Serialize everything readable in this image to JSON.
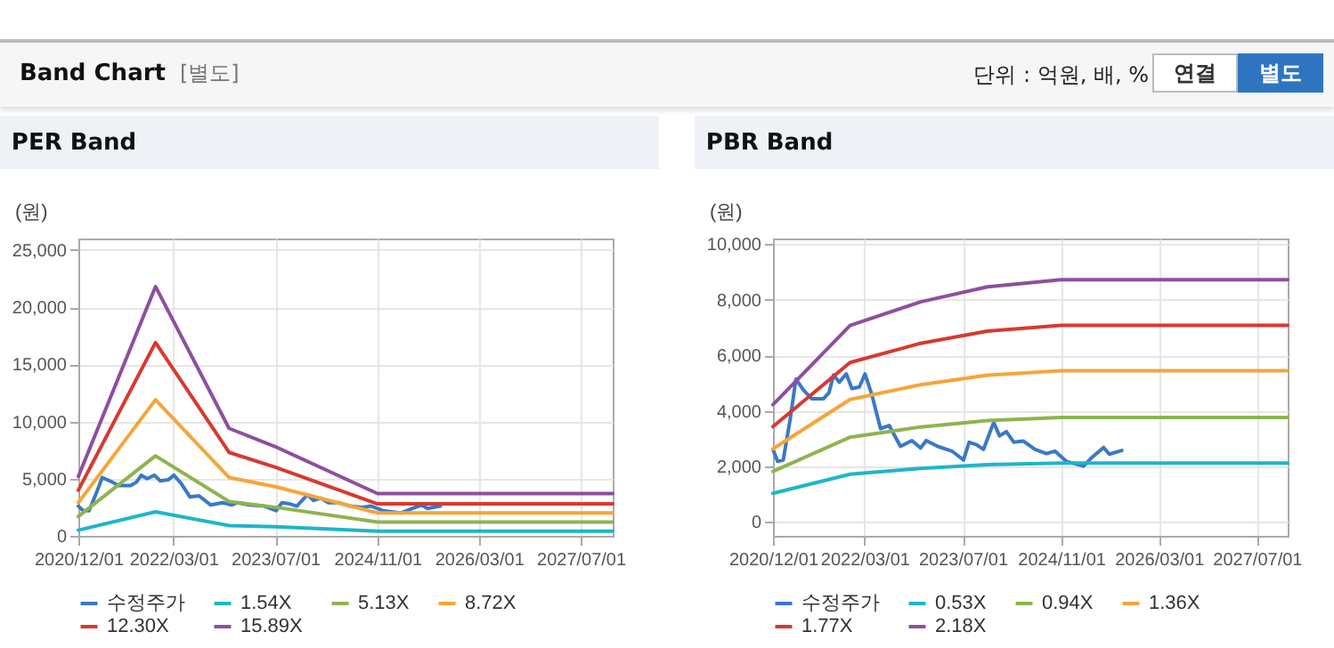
{
  "chart_data": [
    {
      "type": "other",
      "title": "Band Chart",
      "subtitle": "[별도]",
      "annotations": [
        "단위 : 억원, 배, %",
        "연결",
        "별도"
      ]
    },
    {
      "type": "line",
      "title": "PER Band",
      "ylabel": "(원)",
      "legend": "bottom",
      "grid": true,
      "xlim": [
        "2020-12-01",
        "2027-12-01"
      ],
      "xticks": [
        {
          "value": "2020-12-01",
          "label": "2020/12/01"
        },
        {
          "value": "2022-03-01",
          "label": "2022/03/01"
        },
        {
          "value": "2023-07-01",
          "label": "2023/07/01"
        },
        {
          "value": "2024-11-01",
          "label": "2024/11/01"
        },
        {
          "value": "2026-03-01",
          "label": "2026/03/01"
        },
        {
          "value": "2027-07-01",
          "label": "2027/07/01"
        }
      ],
      "ylim": [
        0,
        26000
      ],
      "yticks": [
        0,
        {
          "value": 5000,
          "label": "5,000"
        },
        {
          "value": 10000,
          "label": "10,000"
        },
        {
          "value": 15000,
          "label": "15,000"
        },
        {
          "value": 20000,
          "label": "20,000"
        },
        {
          "value": 25000,
          "label": "25,000"
        }
      ],
      "series": [
        {
          "name": "수정주가",
          "color": "#3a78c8",
          "x": [
            "2020-12-01",
            "2020-12-24",
            "2021-01-21",
            "2021-02-24",
            "2021-03-25",
            "2021-05-01",
            "2021-06-12",
            "2021-08-08",
            "2021-09-05",
            "2021-09-28",
            "2021-10-26",
            "2021-11-30",
            "2021-12-28",
            "2022-02-03",
            "2022-03-03",
            "2022-04-06",
            "2022-05-19",
            "2022-07-01",
            "2022-08-26",
            "2022-10-22",
            "2022-12-04",
            "2023-01-01",
            "2023-02-27",
            "2023-05-09",
            "2023-07-05",
            "2023-08-02",
            "2023-09-08",
            "2023-10-12",
            "2023-12-02",
            "2023-12-31",
            "2024-02-03",
            "2024-03-11",
            "2024-04-28",
            "2024-06-24",
            "2024-08-20",
            "2024-10-01",
            "2024-11-27",
            "2025-02-20",
            "2025-04-04",
            "2025-05-31",
            "2025-06-28",
            "2025-08-29"
          ],
          "values": [
            2600,
            2200,
            2200,
            3700,
            5100,
            4800,
            4400,
            4400,
            4700,
            5300,
            5000,
            5300,
            4800,
            4900,
            5300,
            4600,
            3400,
            3500,
            2700,
            2900,
            2700,
            2900,
            2700,
            2600,
            2200,
            2900,
            2800,
            2600,
            3600,
            3100,
            3300,
            2900,
            2900,
            2600,
            2500,
            2600,
            2200,
            2000,
            2300,
            2700,
            2400,
            2600
          ]
        },
        {
          "name": "1.54X",
          "color": "#1fb5c9",
          "x": [
            "2020-12-01",
            "2021-12-05",
            "2022-11-22",
            "2023-07-01",
            "2024-11-01",
            "2027-12-01"
          ],
          "values": [
            500,
            2100,
            900,
            800,
            400,
            400
          ]
        },
        {
          "name": "5.13X",
          "color": "#8db44f",
          "x": [
            "2020-12-01",
            "2021-12-05",
            "2022-11-22",
            "2023-07-01",
            "2024-11-01",
            "2027-12-01"
          ],
          "values": [
            1700,
            7000,
            3000,
            2500,
            1200,
            1200
          ]
        },
        {
          "name": "8.72X",
          "color": "#f5a53a",
          "x": [
            "2020-12-01",
            "2021-12-05",
            "2022-11-22",
            "2023-07-01",
            "2024-11-01",
            "2027-12-01"
          ],
          "values": [
            2900,
            11900,
            5100,
            4300,
            2000,
            2000
          ]
        },
        {
          "name": "12.30X",
          "color": "#d63a2f",
          "x": [
            "2020-12-01",
            "2021-12-05",
            "2022-11-22",
            "2023-07-01",
            "2024-11-01",
            "2027-12-01"
          ],
          "values": [
            4000,
            16900,
            7300,
            6000,
            2800,
            2800
          ]
        },
        {
          "name": "15.89X",
          "color": "#8e4f9e",
          "x": [
            "2020-12-01",
            "2021-12-05",
            "2022-11-22",
            "2023-07-01",
            "2024-11-01",
            "2027-12-01"
          ],
          "values": [
            5200,
            21800,
            9400,
            7800,
            3700,
            3700
          ]
        }
      ]
    },
    {
      "type": "line",
      "title": "PBR Band",
      "ylabel": "(원)",
      "legend": "bottom",
      "grid": true,
      "xlim": [
        "2020-12-01",
        "2027-12-01"
      ],
      "xticks": [
        {
          "value": "2020-12-01",
          "label": "2020/12/01"
        },
        {
          "value": "2022-03-01",
          "label": "2022/03/01"
        },
        {
          "value": "2023-07-01",
          "label": "2023/07/01"
        },
        {
          "value": "2024-11-01",
          "label": "2024/11/01"
        },
        {
          "value": "2026-03-01",
          "label": "2026/03/01"
        },
        {
          "value": "2027-07-01",
          "label": "2027/07/01"
        }
      ],
      "ylim": [
        -500,
        10200
      ],
      "yticks": [
        0,
        {
          "value": 2000,
          "label": "2,000"
        },
        {
          "value": 4000,
          "label": "4,000"
        },
        {
          "value": 6000,
          "label": "6,000"
        },
        {
          "value": 8000,
          "label": "8,000"
        },
        {
          "value": 10000,
          "label": "10,000"
        }
      ],
      "series": [
        {
          "name": "수정주가",
          "color": "#3a78c8",
          "x": [
            "2020-12-01",
            "2020-12-24",
            "2021-01-21",
            "2021-02-24",
            "2021-03-25",
            "2021-05-01",
            "2021-06-12",
            "2021-08-08",
            "2021-09-05",
            "2021-09-28",
            "2021-10-26",
            "2021-11-30",
            "2021-12-28",
            "2022-02-03",
            "2022-03-03",
            "2022-04-06",
            "2022-05-19",
            "2022-07-01",
            "2022-08-26",
            "2022-10-22",
            "2022-12-04",
            "2023-01-01",
            "2023-02-27",
            "2023-05-09",
            "2023-07-05",
            "2023-08-02",
            "2023-09-08",
            "2023-10-12",
            "2023-12-02",
            "2023-12-31",
            "2024-02-03",
            "2024-03-11",
            "2024-04-28",
            "2024-06-24",
            "2024-08-20",
            "2024-10-01",
            "2024-11-27",
            "2025-02-20",
            "2025-04-04",
            "2025-05-31",
            "2025-06-28",
            "2025-08-29"
          ],
          "values": [
            2610,
            2180,
            2230,
            3680,
            5140,
            4750,
            4430,
            4430,
            4650,
            5290,
            5030,
            5330,
            4800,
            4860,
            5330,
            4580,
            3360,
            3470,
            2720,
            2930,
            2660,
            2930,
            2720,
            2550,
            2230,
            2870,
            2780,
            2610,
            3580,
            3100,
            3250,
            2870,
            2910,
            2610,
            2460,
            2550,
            2180,
            2010,
            2330,
            2680,
            2440,
            2570
          ]
        },
        {
          "name": "0.53X",
          "color": "#1fb5c9",
          "x": [
            "2020-12-01",
            "2021-12-19",
            "2022-12-04",
            "2023-11-01",
            "2024-11-01",
            "2027-12-01"
          ],
          "values": [
            1030,
            1720,
            1930,
            2060,
            2120,
            2120
          ]
        },
        {
          "name": "0.94X",
          "color": "#8db44f",
          "x": [
            "2020-12-01",
            "2021-12-19",
            "2022-12-04",
            "2023-11-01",
            "2024-11-01",
            "2027-12-01"
          ],
          "values": [
            1820,
            3050,
            3420,
            3650,
            3760,
            3760
          ]
        },
        {
          "name": "1.36X",
          "color": "#f5a53a",
          "x": [
            "2020-12-01",
            "2021-12-19",
            "2022-12-04",
            "2023-11-01",
            "2024-11-01",
            "2027-12-01"
          ],
          "values": [
            2630,
            4410,
            4940,
            5280,
            5440,
            5440
          ]
        },
        {
          "name": "1.77X",
          "color": "#d63a2f",
          "x": [
            "2020-12-01",
            "2021-12-19",
            "2022-12-04",
            "2023-11-01",
            "2024-11-01",
            "2027-12-01"
          ],
          "values": [
            3430,
            5740,
            6430,
            6870,
            7080,
            7080
          ]
        },
        {
          "name": "2.18X",
          "color": "#8e4f9e",
          "x": [
            "2020-12-01",
            "2021-12-19",
            "2022-12-04",
            "2023-11-01",
            "2024-11-01",
            "2027-12-01"
          ],
          "values": [
            4220,
            7070,
            7920,
            8460,
            8720,
            8720
          ]
        }
      ]
    }
  ]
}
